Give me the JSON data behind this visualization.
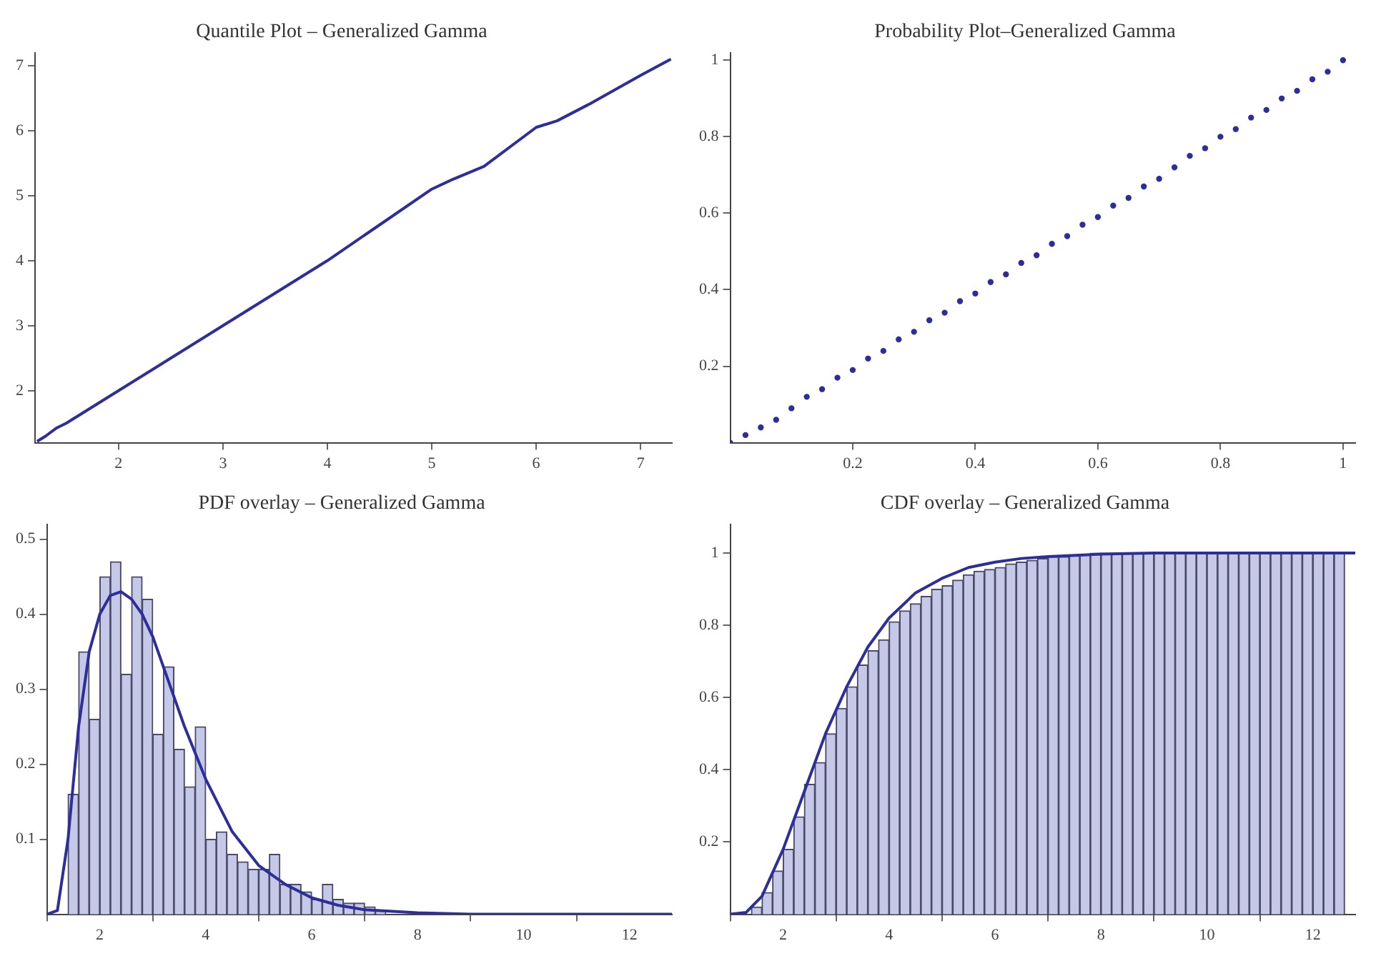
{
  "chart_data": [
    {
      "type": "line",
      "title": "Quantile Plot – Generalized Gamma",
      "marker": "none",
      "xlim": [
        1.2,
        7.3
      ],
      "ylim": [
        1.2,
        7.2
      ],
      "xticks": [
        2,
        3,
        4,
        5,
        6,
        7
      ],
      "yticks": [
        2,
        3,
        4,
        5,
        6,
        7
      ],
      "series": [
        {
          "color": "#2e2e9a",
          "x": [
            1.22,
            1.3,
            1.4,
            1.5,
            1.75,
            2,
            2.5,
            3,
            3.5,
            4,
            4.5,
            5,
            5.2,
            5.5,
            6,
            6.2,
            6.5,
            7,
            7.29
          ],
          "values": [
            1.22,
            1.3,
            1.42,
            1.5,
            1.75,
            2,
            2.5,
            3,
            3.5,
            4,
            4.55,
            5.1,
            5.25,
            5.45,
            6.05,
            6.15,
            6.4,
            6.85,
            7.1
          ]
        }
      ]
    },
    {
      "type": "scatter",
      "title": "Probability Plot–Generalized Gamma",
      "marker": "circle",
      "xlim": [
        0,
        1.02
      ],
      "ylim": [
        0,
        1.02
      ],
      "xticks": [
        0.2,
        0.4,
        0.6,
        0.8,
        1.0
      ],
      "yticks": [
        0.2,
        0.4,
        0.6,
        0.8,
        1.0
      ],
      "series": [
        {
          "color": "#2e2e9a",
          "x": [
            0,
            0.025,
            0.05,
            0.075,
            0.1,
            0.125,
            0.15,
            0.175,
            0.2,
            0.225,
            0.25,
            0.275,
            0.3,
            0.325,
            0.35,
            0.375,
            0.4,
            0.425,
            0.45,
            0.475,
            0.5,
            0.525,
            0.55,
            0.575,
            0.6,
            0.625,
            0.65,
            0.675,
            0.7,
            0.725,
            0.75,
            0.775,
            0.8,
            0.825,
            0.85,
            0.875,
            0.9,
            0.925,
            0.95,
            0.975,
            1.0
          ],
          "values": [
            0,
            0.02,
            0.04,
            0.06,
            0.09,
            0.12,
            0.14,
            0.17,
            0.19,
            0.22,
            0.24,
            0.27,
            0.29,
            0.32,
            0.34,
            0.37,
            0.39,
            0.42,
            0.44,
            0.47,
            0.49,
            0.52,
            0.54,
            0.57,
            0.59,
            0.62,
            0.64,
            0.67,
            0.69,
            0.72,
            0.75,
            0.77,
            0.8,
            0.82,
            0.85,
            0.87,
            0.9,
            0.92,
            0.95,
            0.97,
            1.0
          ]
        }
      ]
    },
    {
      "type": "histogram",
      "title": "PDF overlay – Generalized Gamma",
      "marker": "none",
      "xlim": [
        1,
        12.8
      ],
      "ylim": [
        0,
        0.52
      ],
      "xticks": [
        2,
        4,
        6,
        8,
        10,
        12
      ],
      "yticks": [
        0.1,
        0.2,
        0.3,
        0.4,
        0.5
      ],
      "series": [
        {
          "type": "histogram",
          "color": "#c5c8e6",
          "bins": [
            1.4,
            1.6,
            1.8,
            2.0,
            2.2,
            2.4,
            2.6,
            2.8,
            3.0,
            3.2,
            3.4,
            3.6,
            3.8,
            4.0,
            4.2,
            4.4,
            4.6,
            4.8,
            5.0,
            5.2,
            5.4,
            5.6,
            5.8,
            6.0,
            6.2,
            6.4,
            6.6,
            6.8,
            7.0,
            7.2,
            7.4
          ],
          "values": [
            0.16,
            0.35,
            0.26,
            0.45,
            0.47,
            0.32,
            0.45,
            0.42,
            0.24,
            0.33,
            0.22,
            0.17,
            0.25,
            0.1,
            0.11,
            0.08,
            0.07,
            0.06,
            0.06,
            0.08,
            0.04,
            0.04,
            0.03,
            0.02,
            0.04,
            0.02,
            0.015,
            0.015,
            0.01,
            0.005
          ]
        },
        {
          "type": "line",
          "color": "#2e2e9a",
          "x": [
            1,
            1.2,
            1.4,
            1.6,
            1.8,
            2.0,
            2.2,
            2.4,
            2.6,
            2.8,
            3.0,
            3.2,
            3.4,
            3.6,
            4.0,
            4.5,
            5.0,
            5.5,
            6.0,
            6.5,
            7.0,
            8,
            9,
            10,
            12.8
          ],
          "values": [
            0,
            0.005,
            0.1,
            0.25,
            0.35,
            0.4,
            0.425,
            0.43,
            0.42,
            0.4,
            0.37,
            0.33,
            0.29,
            0.25,
            0.18,
            0.11,
            0.065,
            0.04,
            0.022,
            0.012,
            0.006,
            0.002,
            0,
            0,
            0
          ]
        }
      ]
    },
    {
      "type": "histogram",
      "title": "CDF overlay – Generalized Gamma",
      "marker": "none",
      "xlim": [
        1,
        12.8
      ],
      "ylim": [
        0,
        1.08
      ],
      "xticks": [
        2,
        4,
        6,
        8,
        10,
        12
      ],
      "yticks": [
        0.2,
        0.4,
        0.6,
        0.8,
        1.0
      ],
      "series": [
        {
          "type": "histogram",
          "color": "#c5c8e6",
          "bins": [
            1.4,
            1.6,
            1.8,
            2.0,
            2.2,
            2.4,
            2.6,
            2.8,
            3.0,
            3.2,
            3.4,
            3.6,
            3.8,
            4.0,
            4.2,
            4.4,
            4.6,
            4.8,
            5.0,
            5.2,
            5.4,
            5.6,
            5.8,
            6.0,
            6.2,
            6.4,
            6.6,
            6.8,
            7.0,
            7.2,
            7.4,
            7.6,
            7.8,
            8.0,
            8.2,
            8.4,
            8.6,
            8.8,
            9.0,
            9.2,
            9.4,
            9.6,
            9.8,
            10.0,
            10.2,
            10.4,
            10.6,
            10.8,
            11.0,
            11.2,
            11.4,
            11.6,
            11.8,
            12.0,
            12.2,
            12.4,
            12.6
          ],
          "values": [
            0.02,
            0.06,
            0.12,
            0.18,
            0.27,
            0.36,
            0.42,
            0.5,
            0.57,
            0.63,
            0.69,
            0.73,
            0.76,
            0.81,
            0.84,
            0.86,
            0.88,
            0.9,
            0.91,
            0.925,
            0.94,
            0.95,
            0.955,
            0.96,
            0.97,
            0.975,
            0.98,
            0.985,
            0.99,
            0.99,
            0.995,
            0.995,
            1.0,
            1.0,
            1.0,
            1.0,
            1.0,
            1.0,
            1.0,
            1.0,
            1.0,
            1.0,
            1.0,
            1.0,
            1.0,
            1.0,
            1.0,
            1.0,
            1.0,
            1.0,
            1.0,
            1.0,
            1.0,
            1.0,
            1.0,
            1.0
          ]
        },
        {
          "type": "line",
          "color": "#2e2e9a",
          "x": [
            1,
            1.3,
            1.6,
            2.0,
            2.4,
            2.8,
            3.2,
            3.6,
            4.0,
            4.5,
            5.0,
            5.5,
            6.0,
            6.5,
            7,
            8,
            9,
            12.8
          ],
          "values": [
            0,
            0.005,
            0.05,
            0.18,
            0.34,
            0.5,
            0.63,
            0.74,
            0.82,
            0.89,
            0.93,
            0.96,
            0.975,
            0.985,
            0.99,
            0.997,
            1.0,
            1.0
          ]
        }
      ]
    }
  ]
}
